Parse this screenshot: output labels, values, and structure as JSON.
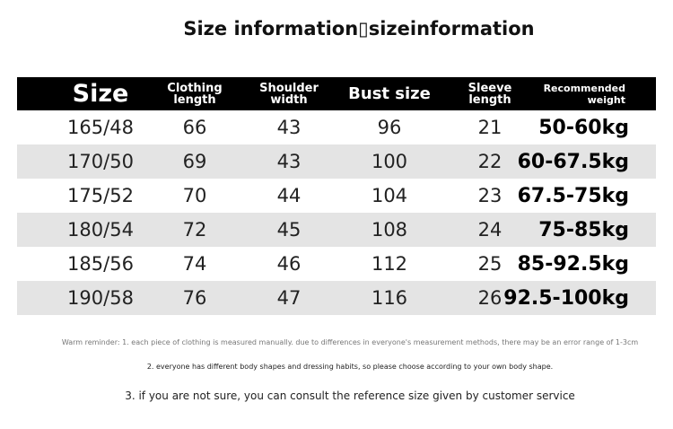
{
  "title": "Size information▯sizeinformation",
  "table": {
    "headers": [
      [
        "Size"
      ],
      [
        "Clothing",
        "length"
      ],
      [
        "Shoulder",
        "width"
      ],
      [
        "Bust size"
      ],
      [
        "Sleeve",
        "length"
      ],
      [
        "Recommended",
        "weight"
      ]
    ],
    "rows": [
      [
        "165/48",
        "66",
        "43",
        "96",
        "21",
        "50-60kg"
      ],
      [
        "170/50",
        "69",
        "43",
        "100",
        "22",
        "60-67.5kg"
      ],
      [
        "175/52",
        "70",
        "44",
        "104",
        "23",
        "67.5-75kg"
      ],
      [
        "180/54",
        "72",
        "45",
        "108",
        "24",
        "75-85kg"
      ],
      [
        "185/56",
        "74",
        "46",
        "112",
        "25",
        "85-92.5kg"
      ],
      [
        "190/58",
        "76",
        "47",
        "116",
        "26",
        "92.5-100kg"
      ]
    ]
  },
  "notes": [
    "Warm reminder: 1. each piece of clothing is measured manually. due to differences in everyone's measurement methods, there may be an error range of 1-3cm",
    "2. everyone has different body shapes and dressing habits, so please choose according to your own body shape.",
    "3. if you are not sure, you can consult the reference size given by customer service"
  ]
}
